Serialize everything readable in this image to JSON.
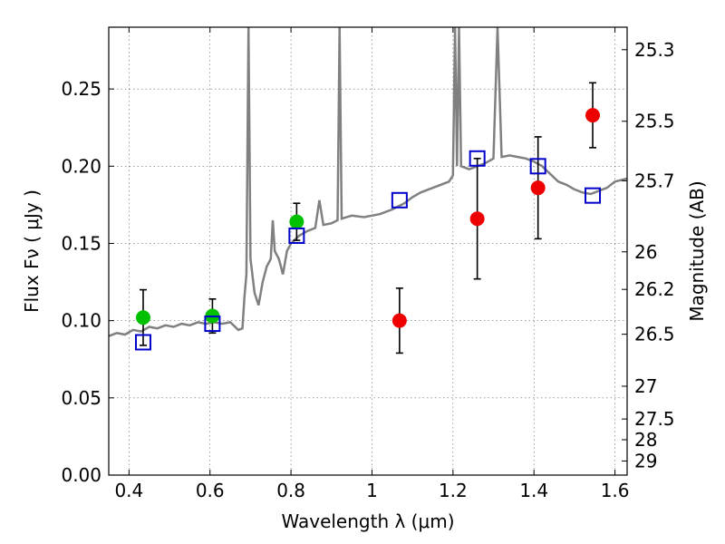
{
  "chart_data": {
    "type": "scatter",
    "xlabel": "Wavelength  λ (μm)",
    "ylabel": "Flux  Fν  ( μJy )",
    "ylabel_right": "Magnitude (AB)",
    "xlim": [
      0.35,
      1.63
    ],
    "ylim": [
      0.0,
      0.29
    ],
    "x_ticks": [
      "0.4",
      "0.6",
      "0.8",
      "1",
      "1.2",
      "1.4",
      "1.6"
    ],
    "x_tick_values": [
      0.4,
      0.6,
      0.8,
      1.0,
      1.2,
      1.4,
      1.6
    ],
    "y_ticks": [
      "0.00",
      "0.05",
      "0.10",
      "0.15",
      "0.20",
      "0.25"
    ],
    "y_tick_values": [
      0.0,
      0.05,
      0.1,
      0.15,
      0.2,
      0.25
    ],
    "right_ticks": [
      "25.3",
      "25.5",
      "25.7",
      "26",
      "26.2",
      "26.5",
      "27",
      "27.5",
      "28",
      "29"
    ],
    "right_tick_values": [
      25.3,
      25.5,
      25.7,
      26.0,
      26.2,
      26.5,
      27.0,
      27.5,
      28.0,
      29.0
    ],
    "grid": true,
    "colors": {
      "spectrum": "#808080",
      "green": "#00c000",
      "red": "#ee0000",
      "model_box": "#0000cc",
      "errorbar": "#000000"
    },
    "series": [
      {
        "marker": "green-circle",
        "points": [
          {
            "x": 0.435,
            "y": 0.102,
            "err": 0.018
          },
          {
            "x": 0.606,
            "y": 0.103,
            "err": 0.011
          },
          {
            "x": 0.814,
            "y": 0.164,
            "err": 0.012
          }
        ]
      },
      {
        "marker": "red-circle",
        "points": [
          {
            "x": 1.068,
            "y": 0.1,
            "err": 0.021
          },
          {
            "x": 1.26,
            "y": 0.166,
            "err": 0.039
          },
          {
            "x": 1.41,
            "y": 0.186,
            "err": 0.033
          },
          {
            "x": 1.545,
            "y": 0.233,
            "err": 0.021
          }
        ]
      },
      {
        "marker": "blue-open-square",
        "points": [
          {
            "x": 0.435,
            "y": 0.086
          },
          {
            "x": 0.606,
            "y": 0.098
          },
          {
            "x": 0.814,
            "y": 0.155
          },
          {
            "x": 1.068,
            "y": 0.178
          },
          {
            "x": 1.26,
            "y": 0.205
          },
          {
            "x": 1.41,
            "y": 0.2
          },
          {
            "x": 1.545,
            "y": 0.181
          }
        ]
      },
      {
        "marker": "gray-line",
        "points": [
          {
            "x": 0.35,
            "y": 0.09
          },
          {
            "x": 0.37,
            "y": 0.092
          },
          {
            "x": 0.39,
            "y": 0.091
          },
          {
            "x": 0.41,
            "y": 0.094
          },
          {
            "x": 0.43,
            "y": 0.093
          },
          {
            "x": 0.45,
            "y": 0.096
          },
          {
            "x": 0.47,
            "y": 0.095
          },
          {
            "x": 0.49,
            "y": 0.097
          },
          {
            "x": 0.51,
            "y": 0.096
          },
          {
            "x": 0.53,
            "y": 0.098
          },
          {
            "x": 0.55,
            "y": 0.097
          },
          {
            "x": 0.57,
            "y": 0.099
          },
          {
            "x": 0.59,
            "y": 0.098
          },
          {
            "x": 0.61,
            "y": 0.099
          },
          {
            "x": 0.63,
            "y": 0.098
          },
          {
            "x": 0.65,
            "y": 0.099
          },
          {
            "x": 0.67,
            "y": 0.094
          },
          {
            "x": 0.68,
            "y": 0.095
          },
          {
            "x": 0.685,
            "y": 0.115
          },
          {
            "x": 0.69,
            "y": 0.13
          },
          {
            "x": 0.695,
            "y": 0.29
          },
          {
            "x": 0.7,
            "y": 0.14
          },
          {
            "x": 0.71,
            "y": 0.118
          },
          {
            "x": 0.72,
            "y": 0.11
          },
          {
            "x": 0.73,
            "y": 0.125
          },
          {
            "x": 0.74,
            "y": 0.135
          },
          {
            "x": 0.75,
            "y": 0.14
          },
          {
            "x": 0.755,
            "y": 0.165
          },
          {
            "x": 0.76,
            "y": 0.145
          },
          {
            "x": 0.77,
            "y": 0.14
          },
          {
            "x": 0.78,
            "y": 0.13
          },
          {
            "x": 0.79,
            "y": 0.145
          },
          {
            "x": 0.8,
            "y": 0.15
          },
          {
            "x": 0.82,
            "y": 0.155
          },
          {
            "x": 0.84,
            "y": 0.158
          },
          {
            "x": 0.86,
            "y": 0.16
          },
          {
            "x": 0.87,
            "y": 0.178
          },
          {
            "x": 0.88,
            "y": 0.162
          },
          {
            "x": 0.9,
            "y": 0.163
          },
          {
            "x": 0.915,
            "y": 0.165
          },
          {
            "x": 0.92,
            "y": 0.29
          },
          {
            "x": 0.925,
            "y": 0.166
          },
          {
            "x": 0.95,
            "y": 0.168
          },
          {
            "x": 0.98,
            "y": 0.167
          },
          {
            "x": 1.0,
            "y": 0.168
          },
          {
            "x": 1.02,
            "y": 0.169
          },
          {
            "x": 1.05,
            "y": 0.172
          },
          {
            "x": 1.08,
            "y": 0.176
          },
          {
            "x": 1.1,
            "y": 0.18
          },
          {
            "x": 1.12,
            "y": 0.183
          },
          {
            "x": 1.15,
            "y": 0.186
          },
          {
            "x": 1.17,
            "y": 0.188
          },
          {
            "x": 1.19,
            "y": 0.19
          },
          {
            "x": 1.2,
            "y": 0.194
          },
          {
            "x": 1.205,
            "y": 0.29
          },
          {
            "x": 1.21,
            "y": 0.2
          },
          {
            "x": 1.215,
            "y": 0.29
          },
          {
            "x": 1.22,
            "y": 0.2
          },
          {
            "x": 1.24,
            "y": 0.198
          },
          {
            "x": 1.26,
            "y": 0.2
          },
          {
            "x": 1.28,
            "y": 0.202
          },
          {
            "x": 1.3,
            "y": 0.205
          },
          {
            "x": 1.31,
            "y": 0.29
          },
          {
            "x": 1.32,
            "y": 0.206
          },
          {
            "x": 1.34,
            "y": 0.207
          },
          {
            "x": 1.36,
            "y": 0.206
          },
          {
            "x": 1.38,
            "y": 0.205
          },
          {
            "x": 1.4,
            "y": 0.203
          },
          {
            "x": 1.42,
            "y": 0.2
          },
          {
            "x": 1.44,
            "y": 0.195
          },
          {
            "x": 1.46,
            "y": 0.19
          },
          {
            "x": 1.48,
            "y": 0.188
          },
          {
            "x": 1.5,
            "y": 0.185
          },
          {
            "x": 1.52,
            "y": 0.183
          },
          {
            "x": 1.54,
            "y": 0.182
          },
          {
            "x": 1.56,
            "y": 0.184
          },
          {
            "x": 1.58,
            "y": 0.186
          },
          {
            "x": 1.6,
            "y": 0.19
          },
          {
            "x": 1.63,
            "y": 0.192
          }
        ]
      }
    ]
  }
}
